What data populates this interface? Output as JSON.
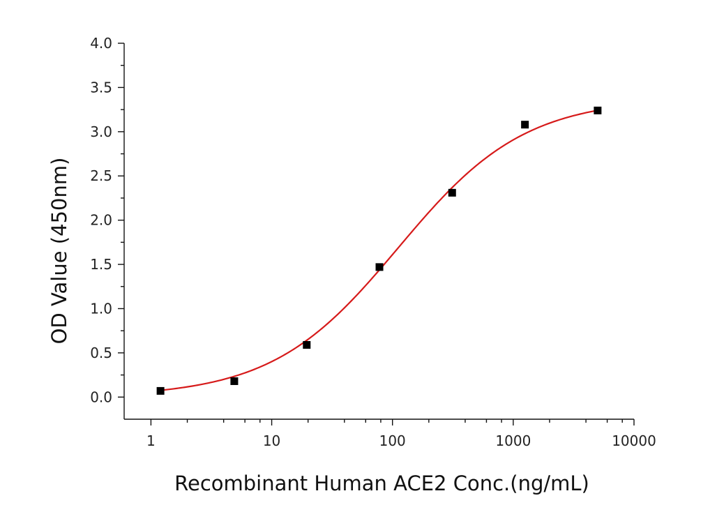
{
  "chart_data": {
    "type": "scatter",
    "title": "",
    "xlabel": "Recombinant Human ACE2 Conc.(ng/mL)",
    "ylabel": "OD Value (450nm)",
    "xscale": "log",
    "xlim": [
      0.6,
      10000
    ],
    "ylim": [
      -0.25,
      4.0
    ],
    "x_ticks": [
      1,
      10,
      100,
      1000,
      10000
    ],
    "x_tick_labels": [
      "1",
      "10",
      "100",
      "1000",
      "10000"
    ],
    "y_ticks": [
      0.0,
      0.5,
      1.0,
      1.5,
      2.0,
      2.5,
      3.0,
      3.5,
      4.0
    ],
    "y_tick_labels": [
      "0.0",
      "0.5",
      "1.0",
      "1.5",
      "2.0",
      "2.5",
      "3.0",
      "3.5",
      "4.0"
    ],
    "grid": false,
    "legend": "none",
    "series": [
      {
        "type": "scatter",
        "marker": "square",
        "color": "#000000",
        "points": [
          {
            "x": 1.2,
            "y": 0.07
          },
          {
            "x": 4.9,
            "y": 0.18
          },
          {
            "x": 19.5,
            "y": 0.59
          },
          {
            "x": 78,
            "y": 1.47
          },
          {
            "x": 312,
            "y": 2.31
          },
          {
            "x": 1250,
            "y": 3.08
          },
          {
            "x": 5000,
            "y": 3.24
          }
        ]
      },
      {
        "type": "line",
        "color": "#d61a1a",
        "fit": "4PL",
        "params": {
          "bottom": 0.0,
          "top": 3.38,
          "ec50": 112,
          "hill": 0.83
        },
        "x_range": [
          1.2,
          5000
        ]
      }
    ]
  }
}
